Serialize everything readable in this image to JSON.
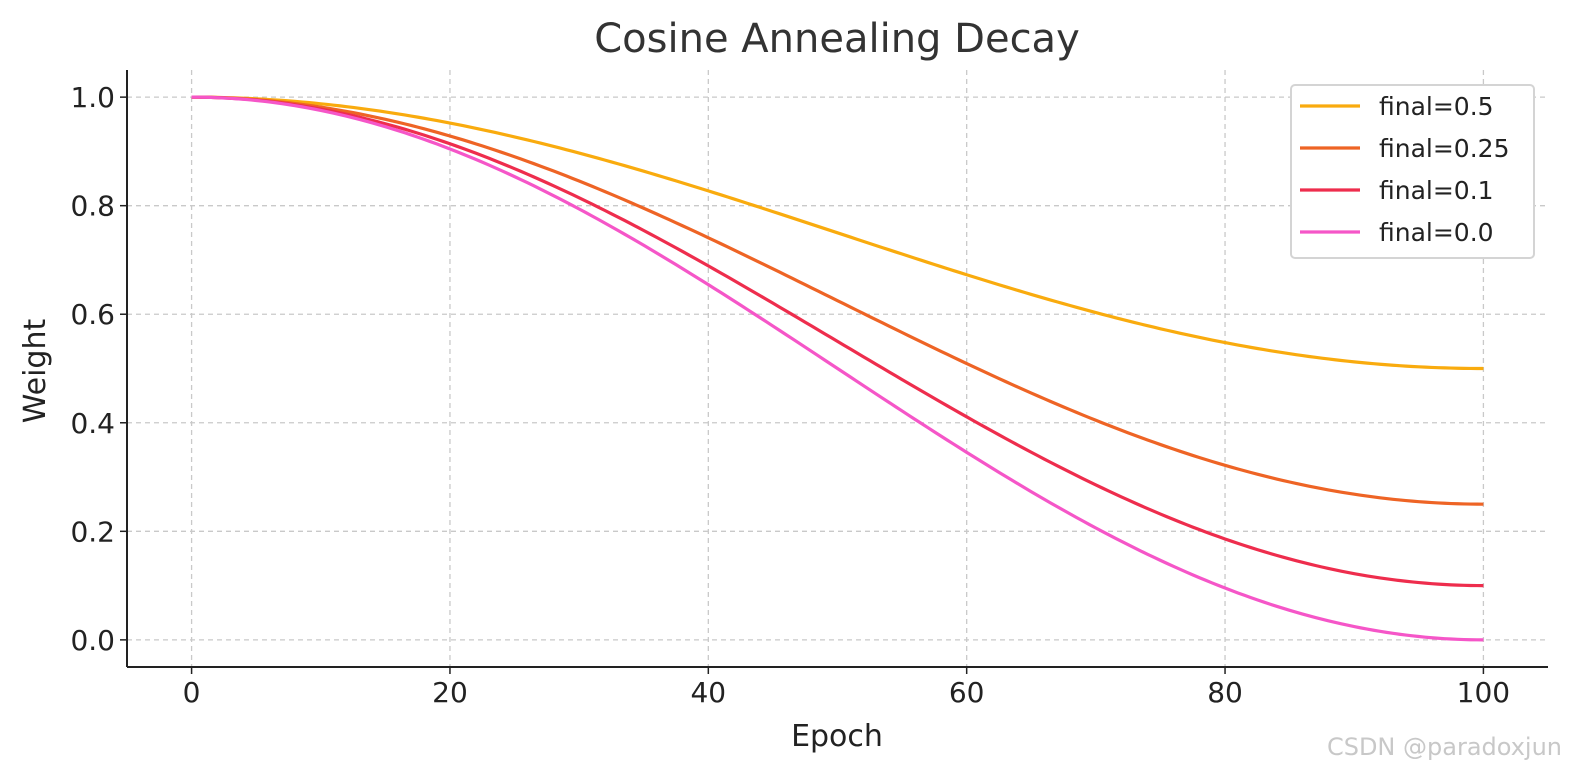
{
  "chart_data": {
    "type": "line",
    "title": "Cosine Annealing Decay",
    "xlabel": "Epoch",
    "ylabel": "Weight",
    "xlim": [
      -5,
      105
    ],
    "ylim": [
      -0.05,
      1.05
    ],
    "xticks": [
      0,
      20,
      40,
      60,
      80,
      100
    ],
    "xtick_labels": [
      "0",
      "20",
      "40",
      "60",
      "80",
      "100"
    ],
    "yticks": [
      0.0,
      0.2,
      0.4,
      0.6,
      0.8,
      1.0
    ],
    "ytick_labels": [
      "0.0",
      "0.2",
      "0.4",
      "0.6",
      "0.8",
      "1.0"
    ],
    "grid": true,
    "legend_position": "top-right",
    "x": [
      0,
      5,
      10,
      15,
      20,
      25,
      30,
      35,
      40,
      45,
      50,
      55,
      60,
      65,
      70,
      75,
      80,
      85,
      90,
      95,
      100
    ],
    "series": [
      {
        "name": "final=0.5",
        "color": "#f9ab0e",
        "values": [
          1.0,
          0.9969,
          0.9878,
          0.9727,
          0.9523,
          0.9268,
          0.897,
          0.8635,
          0.8273,
          0.7891,
          0.75,
          0.7109,
          0.6727,
          0.6365,
          0.603,
          0.5732,
          0.5477,
          0.5273,
          0.5122,
          0.5031,
          0.5
        ]
      },
      {
        "name": "final=0.25",
        "color": "#ee6425",
        "values": [
          1.0,
          0.9954,
          0.9817,
          0.9591,
          0.9284,
          0.8902,
          0.8455,
          0.7953,
          0.7409,
          0.6837,
          0.625,
          0.5663,
          0.5091,
          0.4547,
          0.4045,
          0.3598,
          0.3216,
          0.2909,
          0.2683,
          0.2546,
          0.25
        ]
      },
      {
        "name": "final=0.1",
        "color": "#ee2d4d",
        "values": [
          1.0,
          0.9944,
          0.978,
          0.9509,
          0.9141,
          0.8683,
          0.8146,
          0.7543,
          0.6891,
          0.6204,
          0.55,
          0.4796,
          0.4109,
          0.3457,
          0.2854,
          0.2317,
          0.1859,
          0.1491,
          0.122,
          0.1056,
          0.1
        ]
      },
      {
        "name": "final=0.0",
        "color": "#f556c8",
        "values": [
          1.0,
          0.9938,
          0.9755,
          0.9455,
          0.9045,
          0.8536,
          0.7939,
          0.727,
          0.6545,
          0.5782,
          0.5,
          0.4218,
          0.3455,
          0.273,
          0.2061,
          0.1464,
          0.0955,
          0.0545,
          0.0245,
          0.0062,
          0.0
        ]
      }
    ]
  },
  "watermark": "CSDN @paradoxjun"
}
